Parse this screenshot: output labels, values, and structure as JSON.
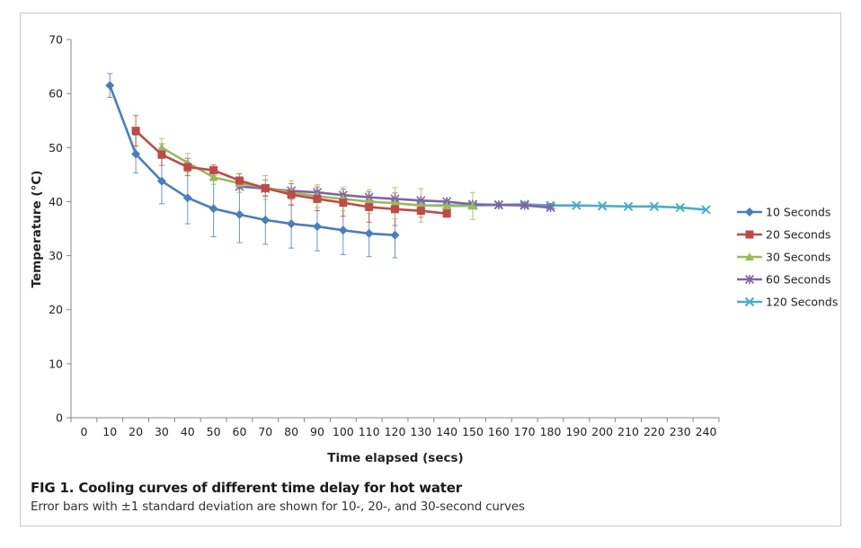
{
  "caption": {
    "title": "FIG 1.  Cooling curves of different time delay for hot water",
    "note": "Error bars with ±1 standard deviation are shown for 10-, 20-, and 30-second curves"
  },
  "chart_data": {
    "type": "line",
    "title": "",
    "xlabel": "Time elapsed (secs)",
    "ylabel": "Temperature (°C)",
    "xlim": [
      0,
      240
    ],
    "ylim": [
      0,
      70
    ],
    "x_ticks": [
      0,
      10,
      20,
      30,
      40,
      50,
      60,
      70,
      80,
      90,
      100,
      110,
      120,
      130,
      140,
      150,
      160,
      170,
      180,
      190,
      200,
      210,
      220,
      230,
      240
    ],
    "y_ticks": [
      0,
      10,
      20,
      30,
      40,
      50,
      60,
      70
    ],
    "grid": false,
    "legend_position": "right",
    "series": [
      {
        "name": "10 Seconds",
        "color": "#4a7ebb",
        "marker": "diamond",
        "x": [
          10,
          20,
          30,
          40,
          50,
          60,
          70,
          80,
          90,
          100,
          110,
          120
        ],
        "y": [
          61.5,
          48.8,
          43.8,
          40.7,
          38.7,
          37.6,
          36.6,
          35.9,
          35.4,
          34.7,
          34.1,
          33.8
        ],
        "error": [
          2.2,
          3.5,
          4.2,
          4.8,
          5.2,
          5.2,
          4.5,
          4.5,
          4.5,
          4.5,
          4.3,
          4.2
        ]
      },
      {
        "name": "20 Seconds",
        "color": "#be4b48",
        "marker": "square",
        "x": [
          20,
          30,
          40,
          50,
          60,
          70,
          80,
          90,
          100,
          110,
          120,
          130,
          140
        ],
        "y": [
          53.1,
          48.7,
          46.4,
          45.8,
          43.9,
          42.5,
          41.3,
          40.5,
          39.8,
          39.0,
          38.6,
          38.3,
          37.8
        ],
        "error": [
          2.8,
          2.0,
          1.6,
          1.0,
          1.3,
          1.5,
          2.0,
          2.2,
          2.5,
          2.8,
          3.0,
          1.2,
          0.7
        ]
      },
      {
        "name": "30 Seconds",
        "color": "#9bbb59",
        "marker": "triangle",
        "x": [
          30,
          40,
          50,
          60,
          70,
          80,
          90,
          100,
          110,
          120,
          130,
          140,
          150
        ],
        "y": [
          50.0,
          47.2,
          44.5,
          43.4,
          42.6,
          41.7,
          41.0,
          40.5,
          40.0,
          39.7,
          39.3,
          39.2,
          39.2
        ],
        "error": [
          1.7,
          1.7,
          1.3,
          1.7,
          2.2,
          2.2,
          2.1,
          2.2,
          2.2,
          2.9,
          3.1,
          1.2,
          2.5
        ]
      },
      {
        "name": "60 Seconds",
        "color": "#8064a2",
        "marker": "star",
        "x": [
          60,
          70,
          80,
          90,
          100,
          110,
          120,
          130,
          140,
          150,
          160,
          170,
          180
        ],
        "y": [
          42.8,
          42.4,
          42.0,
          41.7,
          41.2,
          40.8,
          40.5,
          40.2,
          40.0,
          39.5,
          39.4,
          39.3,
          38.9
        ]
      },
      {
        "name": "120 Seconds",
        "color": "#4bacc6",
        "marker": "x",
        "x": [
          120,
          130,
          140,
          150,
          160,
          170,
          180,
          190,
          200,
          210,
          220,
          230,
          240
        ],
        "y": [
          39.7,
          39.3,
          39.3,
          39.3,
          39.4,
          39.5,
          39.3,
          39.3,
          39.2,
          39.1,
          39.1,
          38.9,
          38.5
        ]
      }
    ]
  }
}
